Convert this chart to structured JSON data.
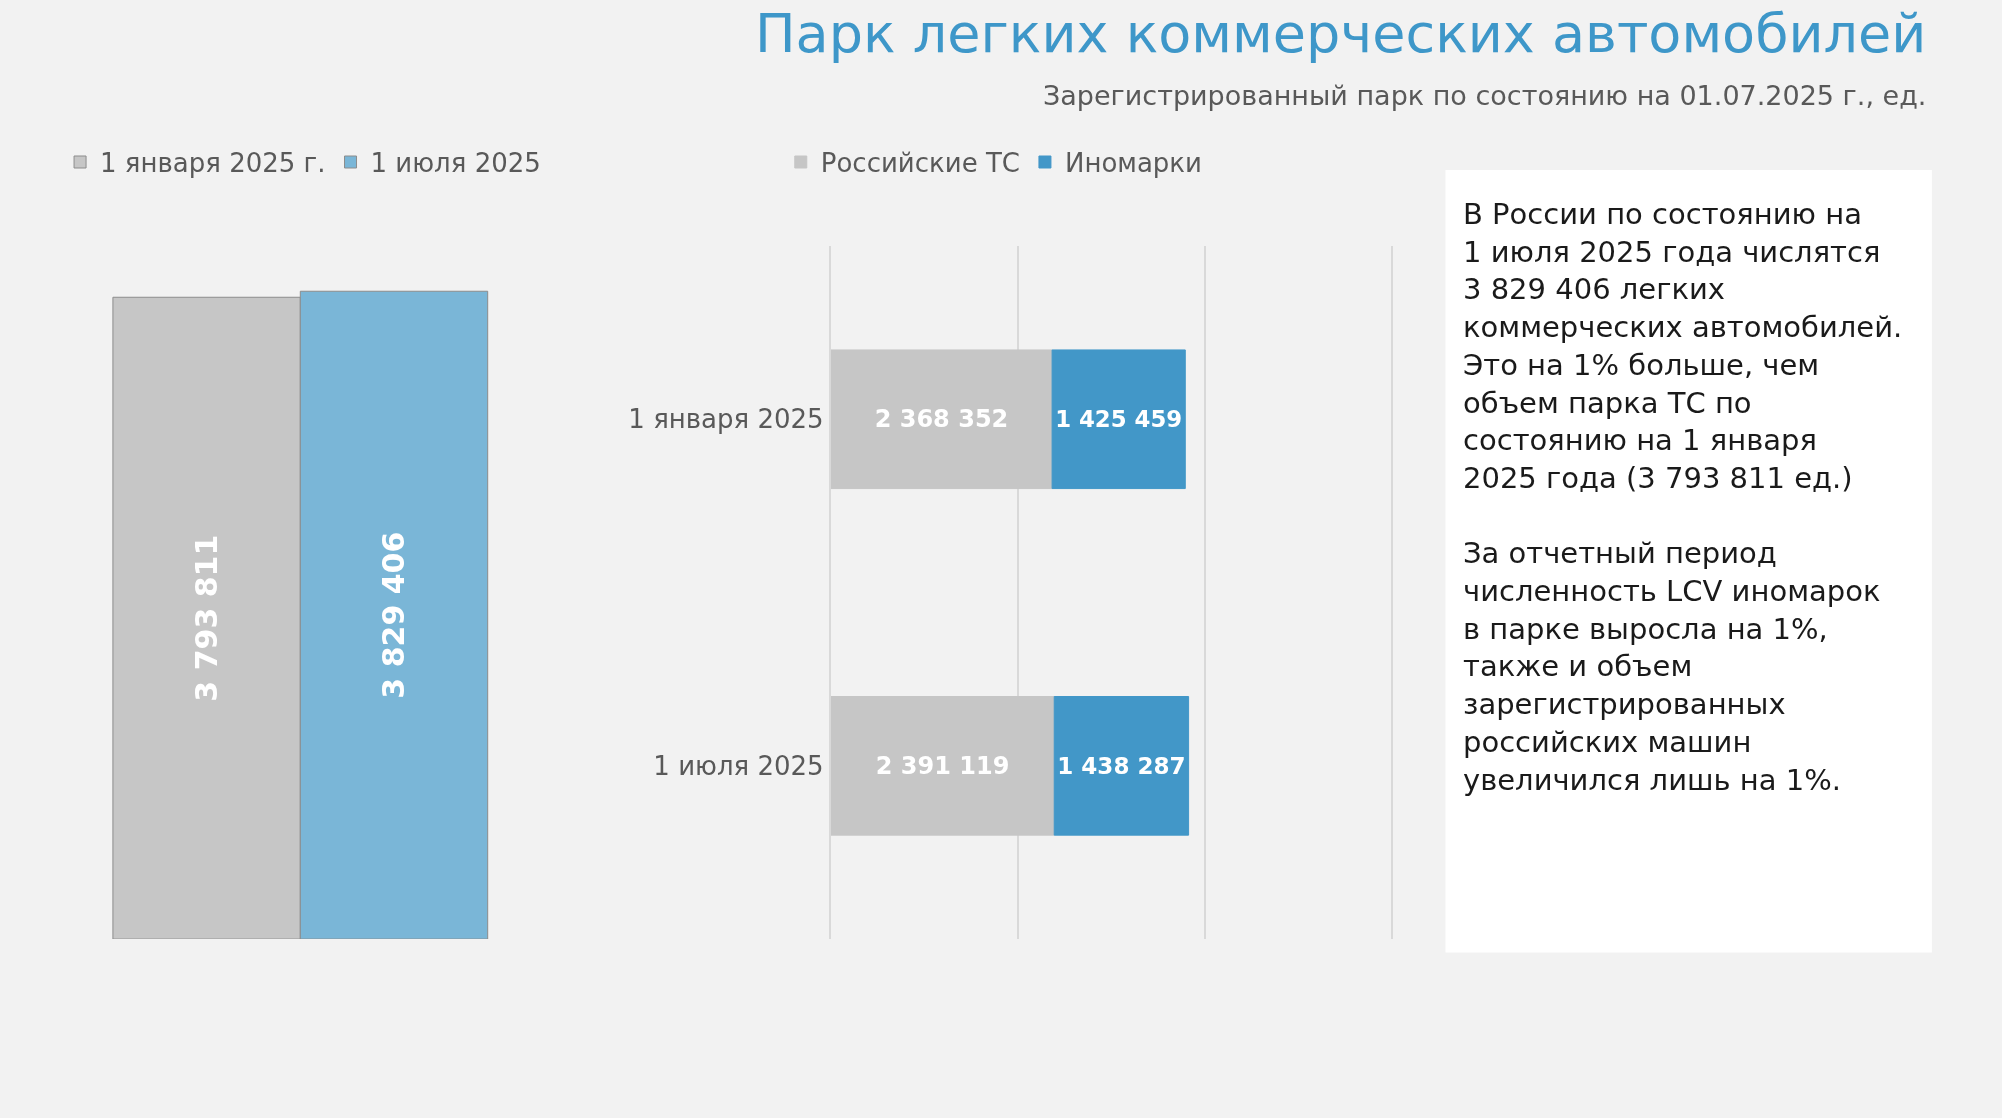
{
  "chart_data": [
    {
      "type": "bar",
      "categories": [
        null
      ],
      "legend": "top left",
      "tick_labels": false,
      "series": [
        {
          "name": "1 января 2025 г.",
          "color": "#c6c6c6",
          "values": [
            3793811
          ],
          "value_labels": [
            "3 793 811"
          ]
        },
        {
          "name": "1 июля 2025",
          "color": "#7ab6d7",
          "values": [
            3829406
          ],
          "value_labels": [
            "3 829 406"
          ]
        }
      ]
    },
    {
      "type": "bar",
      "orientation": "horizontal",
      "stacked": true,
      "categories": [
        "1 января 2025",
        "1 июля 2025"
      ],
      "xlim": [
        0,
        6000000
      ],
      "xticks": [
        {
          "value": 0,
          "label": null
        },
        {
          "value": 2000000,
          "label": null
        },
        {
          "value": 4000000,
          "label": null
        },
        {
          "value": 6000000,
          "label": null
        }
      ],
      "grid": "x",
      "legend": "top",
      "tick_labels": "y",
      "series": [
        {
          "name": "Российские ТС",
          "color": "#c6c6c6",
          "values": [
            2368352,
            2391119
          ],
          "value_labels": [
            "2 368 352",
            "2 391 119"
          ]
        },
        {
          "name": "Иномарки",
          "color": "#4297c8",
          "values": [
            1425459,
            1438287
          ],
          "value_labels": [
            "1 425 459",
            "1 438 287"
          ]
        }
      ]
    },
    {
      "type": "other",
      "title": "Парк легких коммерческих автомобилей",
      "subtitle": "Зарегистрированный парк по состоянию на 01.07.2025 г., ед.",
      "annotations": [
        "В России по состоянию на 1 июля 2025 года числятся 3 829 406 легких коммерческих автомобилей. Это на 1% больше, чем объем парка ТС по состоянию на 1 января 2025 года (3 793 811 ед.)",
        "За отчетный период численность LCV иномарок в парке выросла на 1%,  также и объем зарегистрированных российских машин увеличился лишь на 1%."
      ]
    }
  ]
}
